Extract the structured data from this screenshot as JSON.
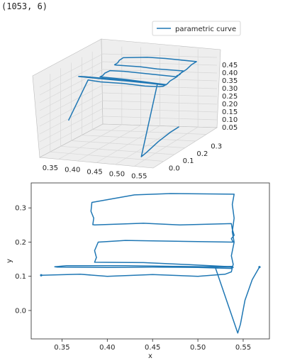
{
  "header_text": "(1053, 6)",
  "legend": {
    "label": "parametric curve"
  },
  "colors": {
    "line": "#1f77b4",
    "pane": "#eeeeee",
    "grid": "#d7d7d7",
    "axis": "#262626"
  },
  "chart_data": [
    {
      "type": "line-3d",
      "series": [
        {
          "name": "parametric curve"
        }
      ],
      "x_ticks": [
        "0.35",
        "0.40",
        "0.45",
        "0.50",
        "0.55"
      ],
      "y_ticks": [
        "0.0",
        "0.1",
        "0.2",
        "0.3"
      ],
      "z_ticks": [
        "0.05",
        "0.10",
        "0.15",
        "0.20",
        "0.25",
        "0.30",
        "0.35",
        "0.40",
        "0.45"
      ],
      "xlim": [
        0.32,
        0.575
      ],
      "ylim": [
        -0.08,
        0.37
      ],
      "zlim": [
        0.0,
        0.5
      ],
      "grid": true,
      "legend_position": "upper-right"
    },
    {
      "type": "line",
      "xlabel": "x",
      "ylabel": "y",
      "xlim": [
        0.316,
        0.579
      ],
      "ylim": [
        -0.083,
        0.373
      ],
      "x_ticks": [
        0.35,
        0.4,
        0.45,
        0.5,
        0.55
      ],
      "y_ticks": [
        0.0,
        0.1,
        0.2,
        0.3
      ],
      "x_tick_labels": [
        "0.35",
        "0.40",
        "0.45",
        "0.50",
        "0.55"
      ],
      "y_tick_labels": [
        "0.0",
        "0.1",
        "0.2",
        "0.3"
      ],
      "grid": false,
      "series": [
        {
          "x": [
            0.327,
            0.37,
            0.4,
            0.45,
            0.5,
            0.53,
            0.537,
            0.539,
            0.537,
            0.54,
            0.538,
            0.54,
            0.538,
            0.54,
            0.47,
            0.43,
            0.383,
            0.382,
            0.385,
            0.384,
            0.386,
            0.44,
            0.48,
            0.537,
            0.538,
            0.54,
            0.537,
            0.539,
            0.42,
            0.39,
            0.386,
            0.388,
            0.386,
            0.44,
            0.49,
            0.537,
            0.536,
            0.539,
            0.536,
            0.538,
            0.48,
            0.42,
            0.355,
            0.342,
            0.345,
            0.4,
            0.45,
            0.5,
            0.537,
            0.538,
            0.536,
            0.537,
            0.538,
            0.519,
            0.544,
            0.547,
            0.552,
            0.56,
            0.568
          ],
          "y": [
            0.103,
            0.106,
            0.1,
            0.105,
            0.1,
            0.106,
            0.113,
            0.135,
            0.16,
            0.2,
            0.23,
            0.27,
            0.31,
            0.34,
            0.342,
            0.338,
            0.316,
            0.29,
            0.27,
            0.251,
            0.25,
            0.255,
            0.25,
            0.254,
            0.238,
            0.22,
            0.21,
            0.2,
            0.205,
            0.2,
            0.175,
            0.155,
            0.141,
            0.14,
            0.134,
            0.128,
            0.127,
            0.126,
            0.128,
            0.127,
            0.129,
            0.131,
            0.131,
            0.128,
            0.127,
            0.126,
            0.127,
            0.126,
            0.123,
            0.125,
            0.127,
            0.128,
            0.129,
            0.128,
            -0.066,
            -0.04,
            0.03,
            0.09,
            0.127
          ]
        }
      ]
    }
  ]
}
